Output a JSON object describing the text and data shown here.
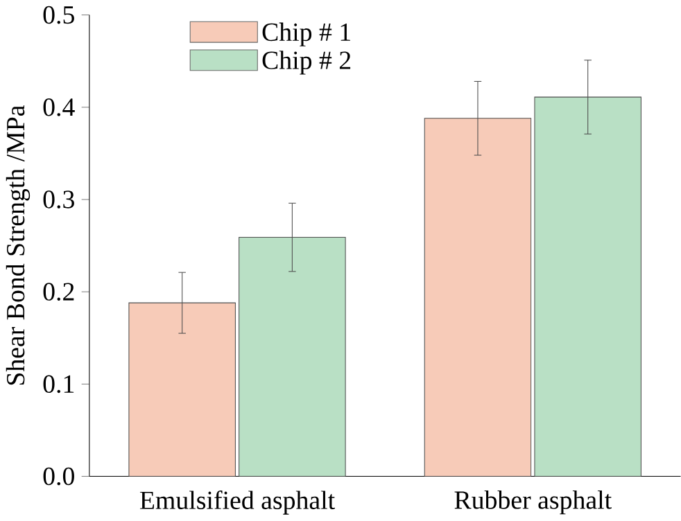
{
  "chart_data": {
    "type": "bar",
    "ylabel": "Shear Bond Strength /MPa",
    "categories": [
      "Emulsified asphalt",
      "Rubber asphalt"
    ],
    "series": [
      {
        "name": "Chip # 1",
        "color": "#f7cbb8",
        "values": [
          0.188,
          0.388
        ],
        "errors": [
          0.033,
          0.04
        ]
      },
      {
        "name": "Chip # 2",
        "color": "#b9e0c5",
        "values": [
          0.259,
          0.411
        ],
        "errors": [
          0.037,
          0.04
        ]
      }
    ],
    "ylim": [
      0,
      0.5
    ],
    "yticks": [
      {
        "value": 0,
        "label": "0.0"
      },
      0.1,
      0.2,
      0.3,
      0.4,
      0.5
    ],
    "legend": "top left",
    "grid": false
  }
}
